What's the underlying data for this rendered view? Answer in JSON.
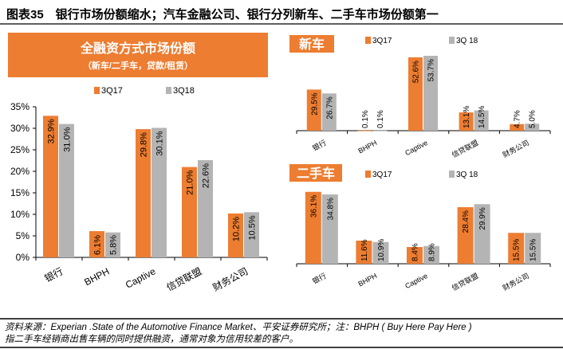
{
  "header": {
    "title": "图表35　银行市场份额缩水；汽车金融公司、银行分列新车、二手车市场份额第一"
  },
  "banner": {
    "title": "全融资方式市场份额",
    "subtitle": "（新车/二手车，贷款/租赁）"
  },
  "colors": {
    "orange": "#ED7D31",
    "gray": "#B4B4B4",
    "text": "#000000"
  },
  "footer": {
    "line1": "资料来源：Experian .State of the Automotive Finance Market、平安证券研究所；注：BHPH ( Buy Here Pay Here )",
    "line2": "指二手车经销商出售车辆的同时提供融资，通常对象为信用较差的客户。"
  },
  "chart_data": [
    {
      "type": "bar",
      "title": "",
      "categories": [
        "银行",
        "BHPH",
        "Captive",
        "信贷联盟",
        "财务公司"
      ],
      "series": [
        {
          "name": "3Q17",
          "values": [
            32.9,
            6.1,
            29.8,
            21.0,
            10.2
          ],
          "labels": [
            "32.9%",
            "6.1%",
            "29.8%",
            "21.0%",
            "10.2%"
          ]
        },
        {
          "name": "3Q18",
          "values": [
            31.0,
            5.8,
            30.1,
            22.6,
            10.5
          ],
          "labels": [
            "31.0%",
            "5.8%",
            "30.1%",
            "22.6%",
            "10.5%"
          ]
        }
      ],
      "yticks": [
        "0%",
        "5%",
        "10%",
        "15%",
        "20%",
        "25%",
        "30%",
        "35%"
      ],
      "ylim": [
        0,
        35
      ],
      "legend": "top"
    },
    {
      "type": "bar",
      "title": "新车",
      "categories": [
        "银行",
        "BHPH",
        "Captive",
        "信贷联盟",
        "财务公司"
      ],
      "series": [
        {
          "name": "3Q17",
          "values": [
            29.5,
            0.1,
            52.6,
            13.1,
            4.7
          ],
          "labels": [
            "29.5%",
            "0.1%",
            "52.6%",
            "13.1%",
            "4.7%"
          ]
        },
        {
          "name": "3Q 18",
          "values": [
            26.7,
            0.1,
            53.7,
            14.5,
            5.0
          ],
          "labels": [
            "26.7%",
            "0.1%",
            "53.7%",
            "14.5%",
            "5.0%"
          ]
        }
      ],
      "ylim": [
        0,
        60
      ],
      "legend": "top"
    },
    {
      "type": "bar",
      "title": "二手车",
      "categories": [
        "银行",
        "BHPH",
        "Captive",
        "信贷联盟",
        "财务公司"
      ],
      "series": [
        {
          "name": "3Q17",
          "values": [
            36.1,
            11.6,
            8.4,
            28.4,
            15.5
          ],
          "labels": [
            "36.1%",
            "11.6%",
            "8.4%",
            "28.4%",
            "15.5%"
          ]
        },
        {
          "name": "3Q 18",
          "values": [
            34.8,
            10.9,
            8.9,
            29.9,
            15.5
          ],
          "labels": [
            "34.8%",
            "10.9%",
            "8.9%",
            "29.9%",
            "15.5%"
          ]
        }
      ],
      "ylim": [
        0,
        40
      ],
      "legend": "top"
    }
  ]
}
